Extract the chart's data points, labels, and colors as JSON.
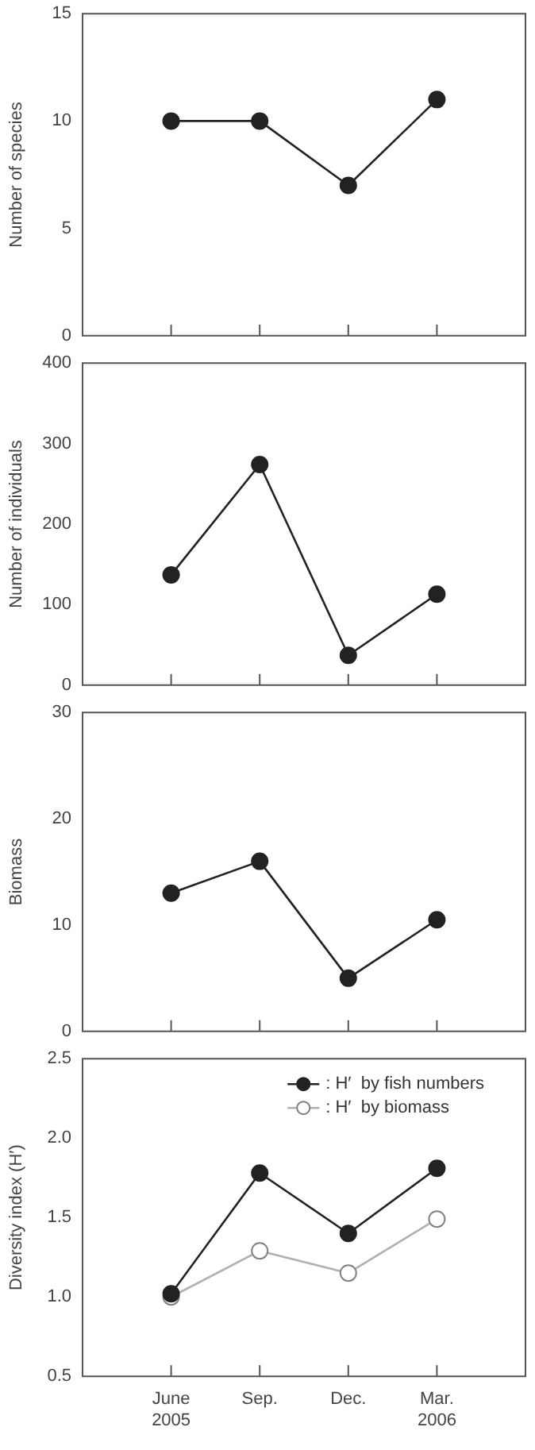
{
  "chart_data": [
    {
      "type": "line",
      "ylabel": "Number of species",
      "categories": [
        null,
        null,
        null,
        null
      ],
      "values": [
        10,
        10,
        7,
        11
      ],
      "color": "#222222",
      "ylim": [
        0,
        15
      ],
      "yticks": [
        0,
        5,
        10,
        15
      ],
      "grid": false,
      "marker": "circle",
      "line_style": "solid"
    },
    {
      "type": "line",
      "ylabel": "Number of individuals",
      "categories": [
        null,
        null,
        null,
        null
      ],
      "values": [
        137,
        274,
        37,
        113
      ],
      "color": "#222222",
      "ylim": [
        0,
        400
      ],
      "yticks": [
        0,
        100,
        200,
        300,
        400
      ],
      "grid": false,
      "marker": "circle",
      "line_style": "solid"
    },
    {
      "type": "line",
      "ylabel": "Biomass",
      "categories": [
        null,
        null,
        null,
        null
      ],
      "values": [
        13,
        16,
        5,
        10.5
      ],
      "color": "#222222",
      "ylim": [
        0,
        30
      ],
      "yticks": [
        0,
        10,
        20,
        30
      ],
      "grid": false,
      "marker": "circle",
      "line_style": "solid"
    },
    {
      "type": "line",
      "ylabel": "Diversity index (H′)",
      "categories": [
        "June\n2005",
        "Sep.",
        "Dec.",
        "Mar.\n2006"
      ],
      "series": [
        {
          "name": ": H′  by fish numbers",
          "color": "#222222",
          "values": [
            1.02,
            1.78,
            1.4,
            1.81
          ]
        },
        {
          "name": ": H′  by biomass",
          "color": "#b0b0b0",
          "values": [
            1.0,
            1.29,
            1.15,
            1.49
          ]
        }
      ],
      "ylim": [
        0.5,
        2.5
      ],
      "yticks": [
        0.5,
        {
          "value": 1,
          "label": "1.0"
        },
        1.5,
        {
          "value": 2,
          "label": "2.0"
        },
        2.5
      ],
      "grid": false,
      "marker": "circle",
      "line_style": "solid",
      "legend": "top right"
    }
  ]
}
